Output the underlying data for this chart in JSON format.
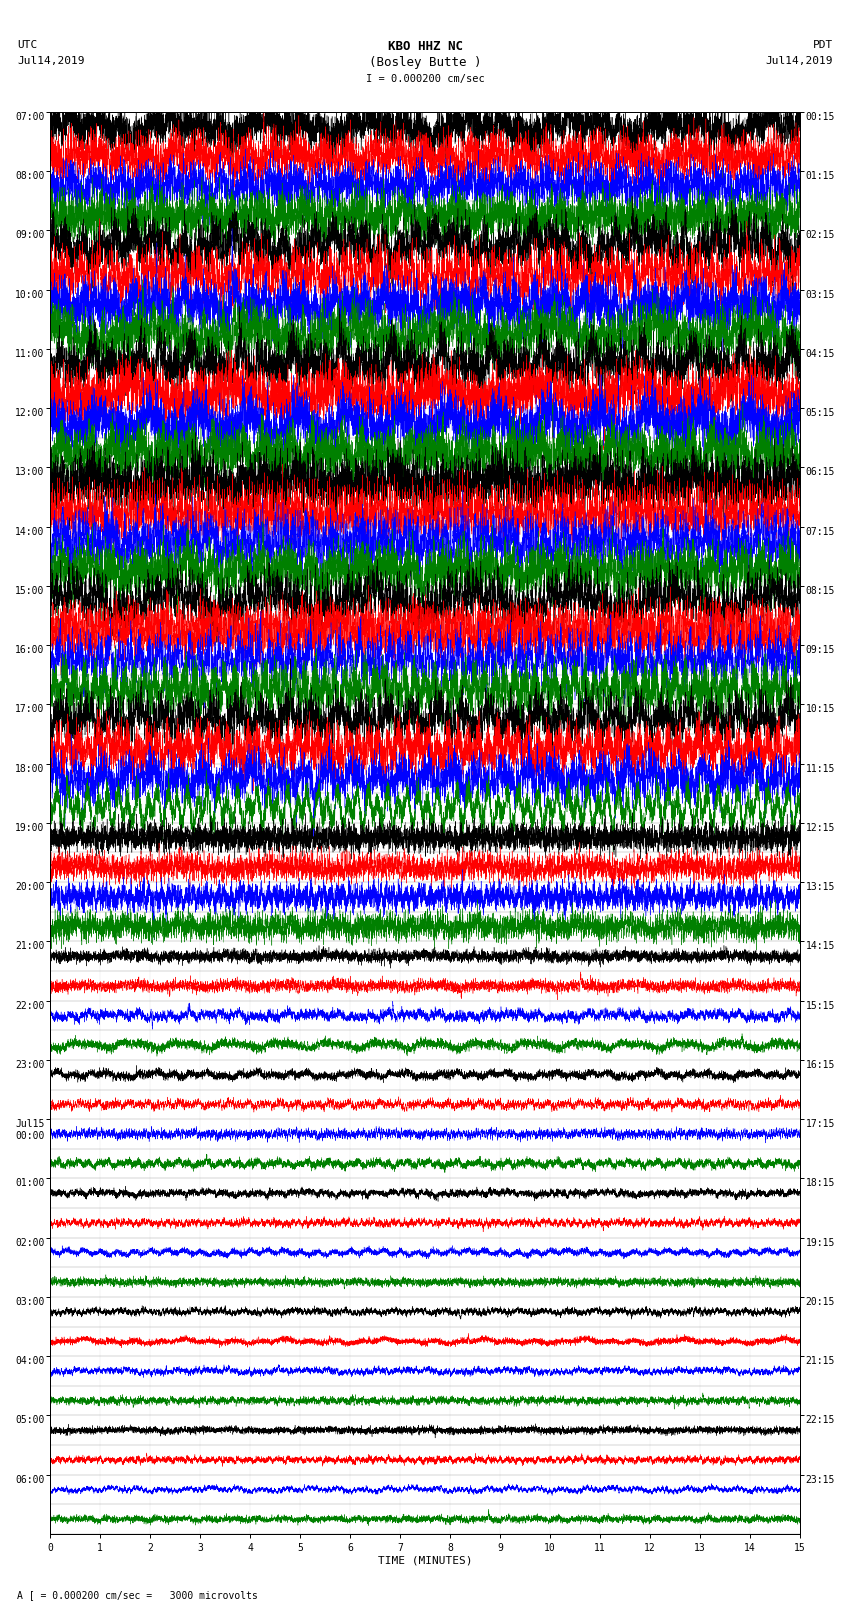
{
  "title_line1": "KBO HHZ NC",
  "title_line2": "(Bosley Butte )",
  "scale_text": "I = 0.000200 cm/sec",
  "left_timezone": "UTC",
  "left_date": "Jul14,2019",
  "right_timezone": "PDT",
  "right_date": "Jul14,2019",
  "bottom_label": "TIME (MINUTES)",
  "bottom_note": "A [ = 0.000200 cm/sec =   3000 microvolts",
  "left_times": [
    "07:00",
    "08:00",
    "09:00",
    "10:00",
    "11:00",
    "12:00",
    "13:00",
    "14:00",
    "15:00",
    "16:00",
    "17:00",
    "18:00",
    "19:00",
    "20:00",
    "21:00",
    "22:00",
    "23:00",
    "Jul15\n00:00",
    "01:00",
    "02:00",
    "03:00",
    "04:00",
    "05:00",
    "06:00"
  ],
  "right_times": [
    "00:15",
    "01:15",
    "02:15",
    "03:15",
    "04:15",
    "05:15",
    "06:15",
    "07:15",
    "08:15",
    "09:15",
    "10:15",
    "11:15",
    "12:15",
    "13:15",
    "14:15",
    "15:15",
    "16:15",
    "17:15",
    "18:15",
    "19:15",
    "20:15",
    "21:15",
    "22:15",
    "23:15"
  ],
  "n_rows": 48,
  "n_minutes": 15,
  "colors_cycle": [
    "black",
    "red",
    "blue",
    "green"
  ],
  "background_color": "white",
  "row_amplitudes": [
    0.85,
    0.85,
    0.85,
    0.85,
    1.0,
    1.0,
    1.0,
    1.0,
    1.0,
    1.0,
    1.0,
    1.0,
    1.0,
    1.0,
    1.0,
    1.0,
    1.0,
    1.0,
    1.0,
    1.0,
    0.9,
    0.9,
    0.9,
    0.9,
    0.5,
    0.5,
    0.5,
    0.5,
    0.22,
    0.22,
    0.22,
    0.22,
    0.18,
    0.18,
    0.18,
    0.18,
    0.15,
    0.15,
    0.15,
    0.15,
    0.14,
    0.14,
    0.14,
    0.14,
    0.13,
    0.13,
    0.13,
    0.13
  ],
  "fig_width": 8.5,
  "fig_height": 16.13,
  "dpi": 100
}
